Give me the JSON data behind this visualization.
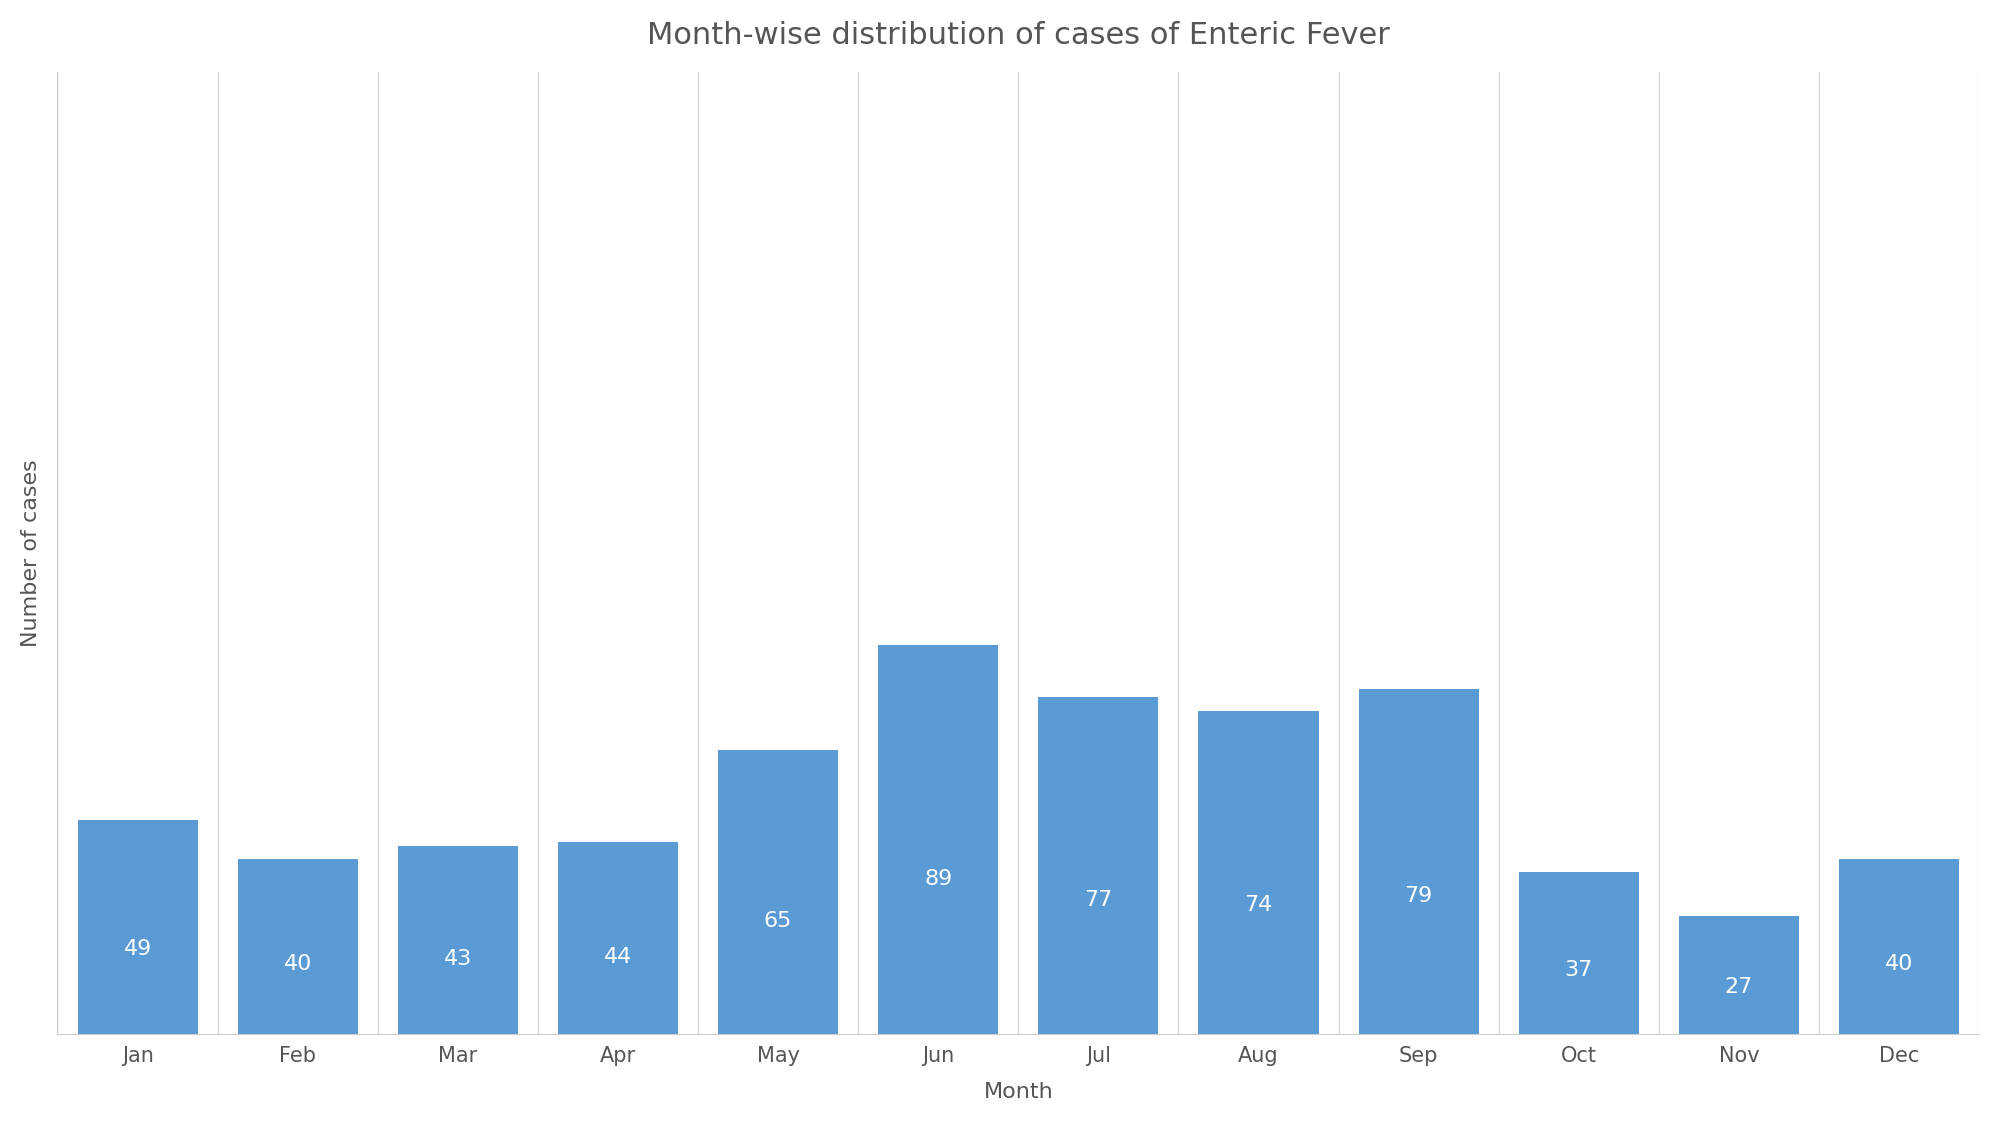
{
  "title": "Month-wise distribution of cases of Enteric Fever",
  "xlabel": "Month",
  "ylabel": "Number of cases",
  "categories": [
    "Jan",
    "Feb",
    "Mar",
    "Apr",
    "May",
    "Jun",
    "Jul",
    "Aug",
    "Sep",
    "Oct",
    "Nov",
    "Dec"
  ],
  "values": [
    49,
    40,
    43,
    44,
    65,
    89,
    77,
    74,
    79,
    37,
    27,
    40
  ],
  "bar_color": "#5B9BD5",
  "label_color": "#FFFFFF",
  "background_color": "#FFFFFF",
  "ylim": [
    0,
    220
  ],
  "title_fontsize": 22,
  "axis_label_fontsize": 16,
  "tick_fontsize": 15,
  "bar_label_fontsize": 16,
  "bar_width": 0.75,
  "grid_color": "#D8D8D8",
  "spine_color": "#CCCCCC"
}
